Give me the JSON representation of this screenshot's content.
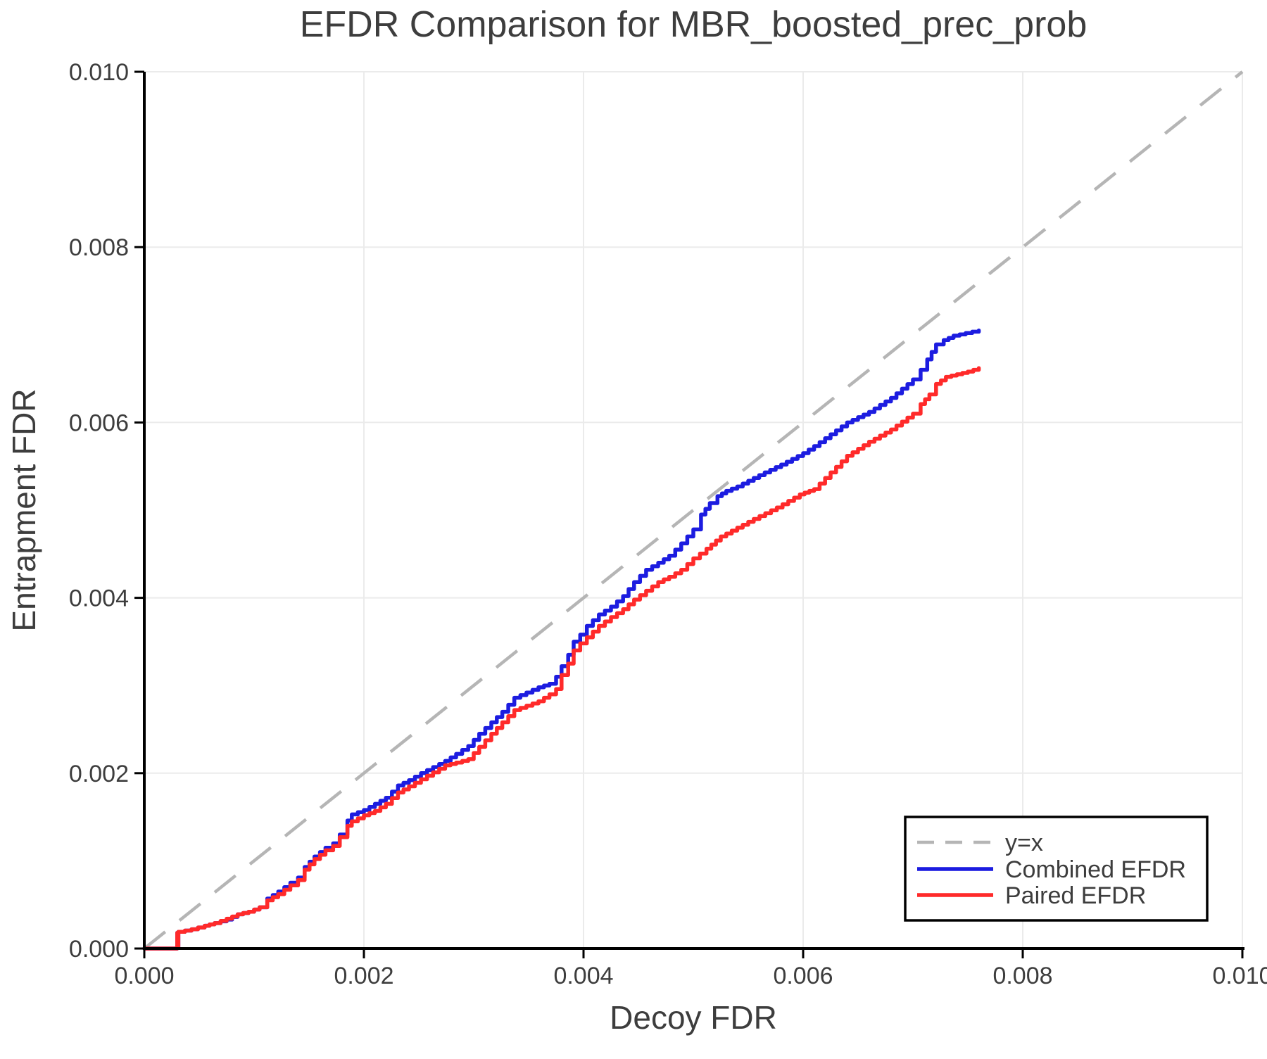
{
  "page": {
    "background": "#ffffff"
  },
  "colors": {
    "text": "#3d3d3d",
    "axis": "#000000",
    "grid": "#ebebeb"
  },
  "chart_data": {
    "type": "line",
    "title": "EFDR Comparison for MBR_boosted_prec_prob",
    "xlabel": "Decoy FDR",
    "ylabel": "Entrapment FDR",
    "xlim": [
      0,
      0.01
    ],
    "ylim": [
      0,
      0.01
    ],
    "xticks": [
      0,
      0.002,
      0.004,
      0.006,
      0.008,
      0.01
    ],
    "yticks": [
      0,
      0.002,
      0.004,
      0.006,
      0.008,
      0.01
    ],
    "xtick_labels": [
      "0.000",
      "0.002",
      "0.004",
      "0.006",
      "0.008",
      "0.010"
    ],
    "ytick_labels": [
      "0.000",
      "0.002",
      "0.004",
      "0.006",
      "0.008",
      "0.010"
    ],
    "grid": true,
    "legend_position": "lower right",
    "reference_line": {
      "label": "y=x",
      "style": "dashed",
      "color": "#b5b5b5",
      "from": [
        0,
        0
      ],
      "to": [
        0.01,
        0.01
      ]
    },
    "series": [
      {
        "name": "Combined EFDR",
        "color": "#1c1ce0",
        "style": "step",
        "points": [
          [
            0.0,
            0.0
          ],
          [
            0.0003,
            0.0
          ],
          [
            0.0003,
            0.00018
          ],
          [
            0.000305,
            2e-05
          ],
          [
            0.00031,
            0.00019
          ],
          [
            0.00043,
            0.00022
          ],
          [
            0.00055,
            0.00026
          ],
          [
            0.00064,
            0.00029
          ],
          [
            0.00075,
            0.00033
          ],
          [
            0.00085,
            0.00039
          ],
          [
            0.00095,
            0.00042
          ],
          [
            0.00105,
            0.00047
          ],
          [
            0.00112,
            0.00057
          ],
          [
            0.00122,
            0.00065
          ],
          [
            0.00133,
            0.00075
          ],
          [
            0.0014,
            0.00081
          ],
          [
            0.00146,
            0.00093
          ],
          [
            0.00155,
            0.00105
          ],
          [
            0.00165,
            0.00115
          ],
          [
            0.00172,
            0.0012
          ],
          [
            0.00178,
            0.0013
          ],
          [
            0.00185,
            0.00146
          ],
          [
            0.00189,
            0.00153
          ],
          [
            0.002,
            0.00158
          ],
          [
            0.0021,
            0.00165
          ],
          [
            0.0022,
            0.00172
          ],
          [
            0.00231,
            0.00186
          ],
          [
            0.00241,
            0.00192
          ],
          [
            0.00252,
            0.002
          ],
          [
            0.00263,
            0.00207
          ],
          [
            0.00274,
            0.00214
          ],
          [
            0.00284,
            0.00222
          ],
          [
            0.00295,
            0.00231
          ],
          [
            0.00305,
            0.00245
          ],
          [
            0.00316,
            0.00258
          ],
          [
            0.00326,
            0.0027
          ],
          [
            0.00337,
            0.00286
          ],
          [
            0.00348,
            0.00292
          ],
          [
            0.00359,
            0.00298
          ],
          [
            0.00369,
            0.00302
          ],
          [
            0.00375,
            0.0031
          ],
          [
            0.0038,
            0.00322
          ],
          [
            0.00386,
            0.00335
          ],
          [
            0.00391,
            0.0035
          ],
          [
            0.00397,
            0.00358
          ],
          [
            0.00403,
            0.00368
          ],
          [
            0.00414,
            0.00381
          ],
          [
            0.00425,
            0.0039
          ],
          [
            0.00436,
            0.00402
          ],
          [
            0.00446,
            0.00418
          ],
          [
            0.00457,
            0.00432
          ],
          [
            0.00468,
            0.0044
          ],
          [
            0.00478,
            0.00448
          ],
          [
            0.00489,
            0.00462
          ],
          [
            0.005,
            0.00478
          ],
          [
            0.00507,
            0.00495
          ],
          [
            0.00515,
            0.00508
          ],
          [
            0.00522,
            0.00516
          ],
          [
            0.0053,
            0.00522
          ],
          [
            0.0054,
            0.00527
          ],
          [
            0.0056,
            0.0054
          ],
          [
            0.0058,
            0.00552
          ],
          [
            0.006,
            0.00565
          ],
          [
            0.0061,
            0.00573
          ],
          [
            0.0064,
            0.006
          ],
          [
            0.0066,
            0.00612
          ],
          [
            0.0068,
            0.00628
          ],
          [
            0.007,
            0.00649
          ],
          [
            0.00707,
            0.0066
          ],
          [
            0.00713,
            0.00672
          ],
          [
            0.00721,
            0.00689
          ],
          [
            0.00728,
            0.00694
          ],
          [
            0.00737,
            0.00699
          ],
          [
            0.00748,
            0.00702
          ],
          [
            0.0076,
            0.00705
          ]
        ]
      },
      {
        "name": "Paired EFDR",
        "color": "#ff2a2a",
        "style": "step",
        "points": [
          [
            0.0,
            0.0
          ],
          [
            0.0003,
            0.0
          ],
          [
            0.0003,
            0.00018
          ],
          [
            0.000305,
            2e-05
          ],
          [
            0.00031,
            0.00019
          ],
          [
            0.00043,
            0.00022
          ],
          [
            0.00055,
            0.00026
          ],
          [
            0.00064,
            0.00029
          ],
          [
            0.00075,
            0.00034
          ],
          [
            0.00085,
            0.00039
          ],
          [
            0.00095,
            0.00042
          ],
          [
            0.00105,
            0.00047
          ],
          [
            0.00112,
            0.00055
          ],
          [
            0.00122,
            0.00062
          ],
          [
            0.00133,
            0.00072
          ],
          [
            0.0014,
            0.00078
          ],
          [
            0.00146,
            0.0009
          ],
          [
            0.00155,
            0.00102
          ],
          [
            0.00165,
            0.00112
          ],
          [
            0.00172,
            0.00117
          ],
          [
            0.00178,
            0.00127
          ],
          [
            0.00185,
            0.0014
          ],
          [
            0.00189,
            0.00145
          ],
          [
            0.002,
            0.00152
          ],
          [
            0.0021,
            0.00157
          ],
          [
            0.0022,
            0.00165
          ],
          [
            0.00231,
            0.00178
          ],
          [
            0.00241,
            0.00185
          ],
          [
            0.00252,
            0.00193
          ],
          [
            0.00263,
            0.00201
          ],
          [
            0.00274,
            0.00209
          ],
          [
            0.00284,
            0.00212
          ],
          [
            0.00295,
            0.00216
          ],
          [
            0.00305,
            0.0023
          ],
          [
            0.00316,
            0.00245
          ],
          [
            0.00326,
            0.00258
          ],
          [
            0.00337,
            0.00272
          ],
          [
            0.00348,
            0.00277
          ],
          [
            0.00359,
            0.00282
          ],
          [
            0.00369,
            0.0029
          ],
          [
            0.00375,
            0.00296
          ],
          [
            0.0038,
            0.00312
          ],
          [
            0.00386,
            0.00325
          ],
          [
            0.00391,
            0.0034
          ],
          [
            0.00397,
            0.00348
          ],
          [
            0.00403,
            0.00355
          ],
          [
            0.00414,
            0.00368
          ],
          [
            0.00425,
            0.00378
          ],
          [
            0.00436,
            0.00387
          ],
          [
            0.00446,
            0.00398
          ],
          [
            0.00457,
            0.00408
          ],
          [
            0.00468,
            0.00418
          ],
          [
            0.00478,
            0.00424
          ],
          [
            0.00489,
            0.00432
          ],
          [
            0.005,
            0.00445
          ],
          [
            0.00512,
            0.00456
          ],
          [
            0.00525,
            0.0047
          ],
          [
            0.0054,
            0.0048
          ],
          [
            0.00555,
            0.0049
          ],
          [
            0.00576,
            0.00503
          ],
          [
            0.00597,
            0.00518
          ],
          [
            0.0061,
            0.00524
          ],
          [
            0.0064,
            0.00562
          ],
          [
            0.0066,
            0.00578
          ],
          [
            0.0068,
            0.00592
          ],
          [
            0.007,
            0.0061
          ],
          [
            0.00707,
            0.00621
          ],
          [
            0.00715,
            0.00632
          ],
          [
            0.00721,
            0.00644
          ],
          [
            0.0073,
            0.00652
          ],
          [
            0.0074,
            0.00655
          ],
          [
            0.0075,
            0.00658
          ],
          [
            0.0076,
            0.00662
          ]
        ]
      }
    ]
  }
}
